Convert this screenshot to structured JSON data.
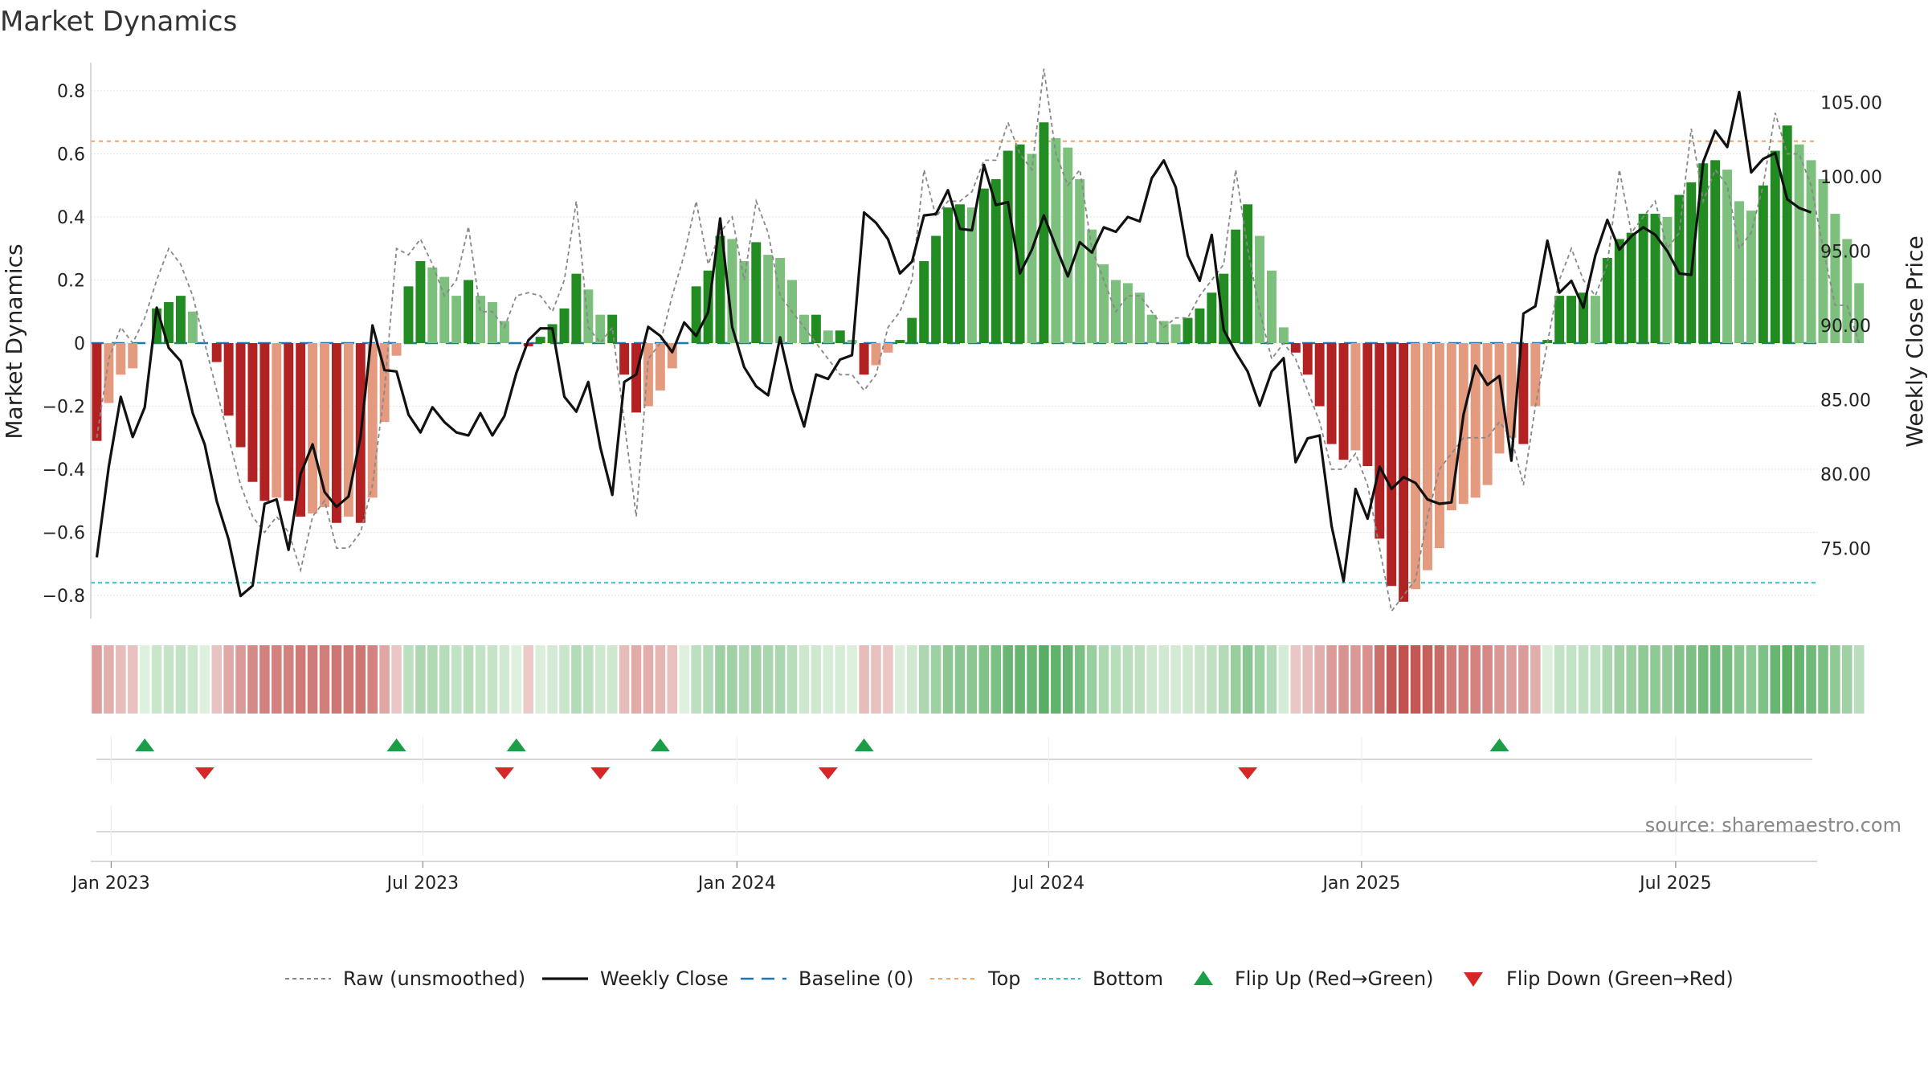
{
  "chart_data": {
    "type": "bar",
    "title": "Market Dynamics",
    "ylabel_left": "Market Dynamics",
    "ylabel_right": "Weekly Close Price",
    "ylim_left": [
      -0.88,
      0.88
    ],
    "ylim_right": [
      70.8,
      106.5
    ],
    "yticks_left": [
      "0.8",
      "0.6",
      "0.4",
      "0.2",
      "0",
      "−0.2",
      "−0.4",
      "−0.6",
      "−0.8"
    ],
    "yticks_left_values": [
      0.8,
      0.6,
      0.4,
      0.2,
      0,
      -0.2,
      -0.4,
      -0.6,
      -0.8
    ],
    "yticks_right": [
      "105.00",
      "100.00",
      "95.00",
      "90.00",
      "85.00",
      "80.00",
      "75.00"
    ],
    "yticks_right_values": [
      105,
      100,
      95,
      90,
      85,
      80,
      75
    ],
    "xticks": [
      "Jan 2023",
      "Jul 2023",
      "Jan 2024",
      "Jul 2024",
      "Jan 2025",
      "Jul 2025"
    ],
    "xticks_week_index": [
      1.2,
      27.2,
      53.4,
      79.4,
      105.5,
      131.7
    ],
    "weeks_total": 144,
    "top_level": 0.64,
    "bottom_level": -0.76,
    "baseline": 0,
    "grid": true,
    "legend_position": "bottom-center",
    "source_text": "source: sharemaestro.com",
    "colors": {
      "strong_green": "#228b22",
      "light_green": "#7dbf7d",
      "strong_red": "#b22222",
      "light_red": "#e39a7f",
      "raw": "#888888",
      "close": "#111111",
      "baseline": "#1f77b4",
      "top": "#f4a261",
      "bottom": "#2ec4c4",
      "flip_up": "#1a9e47",
      "flip_down": "#d62728"
    },
    "series": [
      {
        "name": "Market Dynamics",
        "values": [
          -0.31,
          -0.19,
          -0.1,
          -0.08,
          0,
          0.11,
          0.13,
          0.15,
          0.1,
          0,
          -0.06,
          -0.23,
          -0.33,
          -0.44,
          -0.5,
          -0.49,
          -0.5,
          -0.55,
          -0.54,
          -0.52,
          -0.57,
          -0.55,
          -0.57,
          -0.49,
          -0.25,
          -0.04,
          0.18,
          0.26,
          0.24,
          0.21,
          0.15,
          0.2,
          0.15,
          0.13,
          0.07,
          0,
          -0.01,
          0.02,
          0.06,
          0.11,
          0.22,
          0.17,
          0.09,
          0.09,
          -0.1,
          -0.22,
          -0.2,
          -0.15,
          -0.08,
          0,
          0.18,
          0.23,
          0.34,
          0.33,
          0.26,
          0.32,
          0.28,
          0.27,
          0.2,
          0.09,
          0.09,
          0.04,
          0.04,
          0.01,
          -0.1,
          -0.07,
          -0.03,
          0.01,
          0.08,
          0.26,
          0.34,
          0.43,
          0.44,
          0.43,
          0.49,
          0.52,
          0.61,
          0.63,
          0.6,
          0.7,
          0.65,
          0.62,
          0.52,
          0.36,
          0.25,
          0.2,
          0.19,
          0.16,
          0.09,
          0.07,
          0.06,
          0.08,
          0.11,
          0.16,
          0.22,
          0.36,
          0.44,
          0.34,
          0.23,
          0.05,
          -0.03,
          -0.1,
          -0.2,
          -0.32,
          -0.37,
          -0.34,
          -0.39,
          -0.62,
          -0.77,
          -0.82,
          -0.78,
          -0.72,
          -0.65,
          -0.53,
          -0.51,
          -0.49,
          -0.45,
          -0.35,
          -0.3,
          -0.32,
          -0.2,
          0.01,
          0.15,
          0.15,
          0.16,
          0.15,
          0.27,
          0.33,
          0.35,
          0.41,
          0.41,
          0.4,
          0.47,
          0.51,
          0.57,
          0.58,
          0.55,
          0.45,
          0.42,
          0.5,
          0.61,
          0.69,
          0.63,
          0.58,
          0.52,
          0.41,
          0.33,
          0.19
        ]
      },
      {
        "name": "Raw (unsmoothed)",
        "values": [
          -0.3,
          -0.05,
          0.05,
          0.0,
          0.08,
          0.2,
          0.3,
          0.25,
          0.15,
          0.0,
          -0.15,
          -0.3,
          -0.45,
          -0.55,
          -0.6,
          -0.55,
          -0.6,
          -0.72,
          -0.55,
          -0.5,
          -0.65,
          -0.65,
          -0.6,
          -0.45,
          -0.15,
          0.3,
          0.28,
          0.33,
          0.25,
          0.15,
          0.2,
          0.37,
          0.1,
          0.1,
          0.05,
          0.15,
          0.16,
          0.15,
          0.1,
          0.2,
          0.45,
          0.05,
          0.0,
          0.05,
          -0.25,
          -0.55,
          -0.05,
          0.0,
          0.15,
          0.28,
          0.45,
          0.25,
          0.35,
          0.4,
          0.2,
          0.45,
          0.35,
          0.15,
          0.1,
          0.05,
          0.0,
          -0.05,
          -0.1,
          -0.1,
          -0.15,
          -0.1,
          0.05,
          0.1,
          0.2,
          0.55,
          0.4,
          0.45,
          0.45,
          0.48,
          0.58,
          0.58,
          0.7,
          0.6,
          0.55,
          0.87,
          0.6,
          0.5,
          0.55,
          0.3,
          0.2,
          0.1,
          0.15,
          0.15,
          0.1,
          0.05,
          0.08,
          0.08,
          0.15,
          0.2,
          0.25,
          0.55,
          0.3,
          0.1,
          -0.05,
          0.0,
          -0.05,
          -0.15,
          -0.25,
          -0.4,
          -0.4,
          -0.35,
          -0.45,
          -0.65,
          -0.85,
          -0.8,
          -0.75,
          -0.55,
          -0.4,
          -0.35,
          -0.3,
          -0.3,
          -0.3,
          -0.25,
          -0.3,
          -0.45,
          -0.2,
          0.0,
          0.2,
          0.3,
          0.2,
          0.15,
          0.25,
          0.55,
          0.35,
          0.4,
          0.45,
          0.3,
          0.35,
          0.68,
          0.45,
          0.55,
          0.5,
          0.3,
          0.35,
          0.5,
          0.73,
          0.6,
          0.6,
          0.5,
          0.3,
          0.12,
          0.12,
          0.0
        ]
      },
      {
        "name": "Weekly Close",
        "values": [
          74.4,
          80.5,
          85.2,
          82.5,
          84.5,
          91.2,
          88.5,
          87.6,
          84.1,
          82.0,
          78.2,
          75.6,
          71.8,
          72.5,
          78.0,
          78.3,
          74.9,
          80.0,
          82.0,
          78.8,
          77.8,
          78.5,
          82.5,
          90.0,
          87.0,
          86.9,
          84.0,
          82.8,
          84.5,
          83.5,
          82.8,
          82.6,
          84.1,
          82.6,
          83.9,
          86.8,
          89.0,
          89.8,
          89.8,
          85.2,
          84.2,
          86.2,
          81.8,
          78.6,
          86.2,
          86.7,
          89.9,
          89.3,
          88.2,
          90.2,
          89.3,
          90.9,
          97.2,
          89.9,
          87.2,
          85.9,
          85.3,
          89.2,
          85.7,
          83.2,
          86.7,
          86.4,
          87.7,
          88.0,
          97.6,
          96.9,
          95.8,
          93.5,
          94.3,
          97.4,
          97.5,
          99.1,
          96.5,
          96.4,
          100.8,
          98.1,
          98.3,
          93.5,
          95.1,
          97.4,
          95.3,
          93.3,
          95.6,
          94.9,
          96.6,
          96.3,
          97.3,
          97.0,
          99.9,
          101.1,
          99.3,
          94.7,
          93.0,
          96.1,
          89.7,
          88.2,
          86.9,
          84.6,
          86.9,
          87.8,
          80.8,
          82.4,
          82.6,
          76.5,
          72.8,
          79.0,
          77.0,
          80.5,
          79.0,
          79.8,
          79.4,
          78.3,
          78.0,
          78.1,
          84.0,
          87.3,
          86.0,
          86.6,
          80.9,
          90.8,
          91.3,
          95.7,
          92.2,
          93.0,
          91.2,
          94.7,
          97.1,
          95.1,
          96.0,
          96.6,
          96.1,
          95.0,
          93.5,
          93.4,
          101.0,
          103.1,
          102.0,
          105.7,
          100.3,
          101.2,
          101.6,
          98.5,
          97.9,
          97.6
        ]
      }
    ],
    "flip_up_weeks": [
      4,
      25,
      35,
      47,
      64,
      117
    ],
    "flip_down_weeks": [
      9,
      34,
      42,
      61,
      96
    ],
    "legend": [
      {
        "label": "Raw (unsmoothed)",
        "style": "dashed-gray"
      },
      {
        "label": "Weekly Close",
        "style": "solid-black"
      },
      {
        "label": "Baseline (0)",
        "style": "dashed-blue"
      },
      {
        "label": "Top",
        "style": "dotted-orange"
      },
      {
        "label": "Bottom",
        "style": "dotted-cyan"
      },
      {
        "label": "Flip Up (Red→Green)",
        "style": "triangle-up-green"
      },
      {
        "label": "Flip Down (Green→Red)",
        "style": "triangle-down-red"
      }
    ]
  }
}
